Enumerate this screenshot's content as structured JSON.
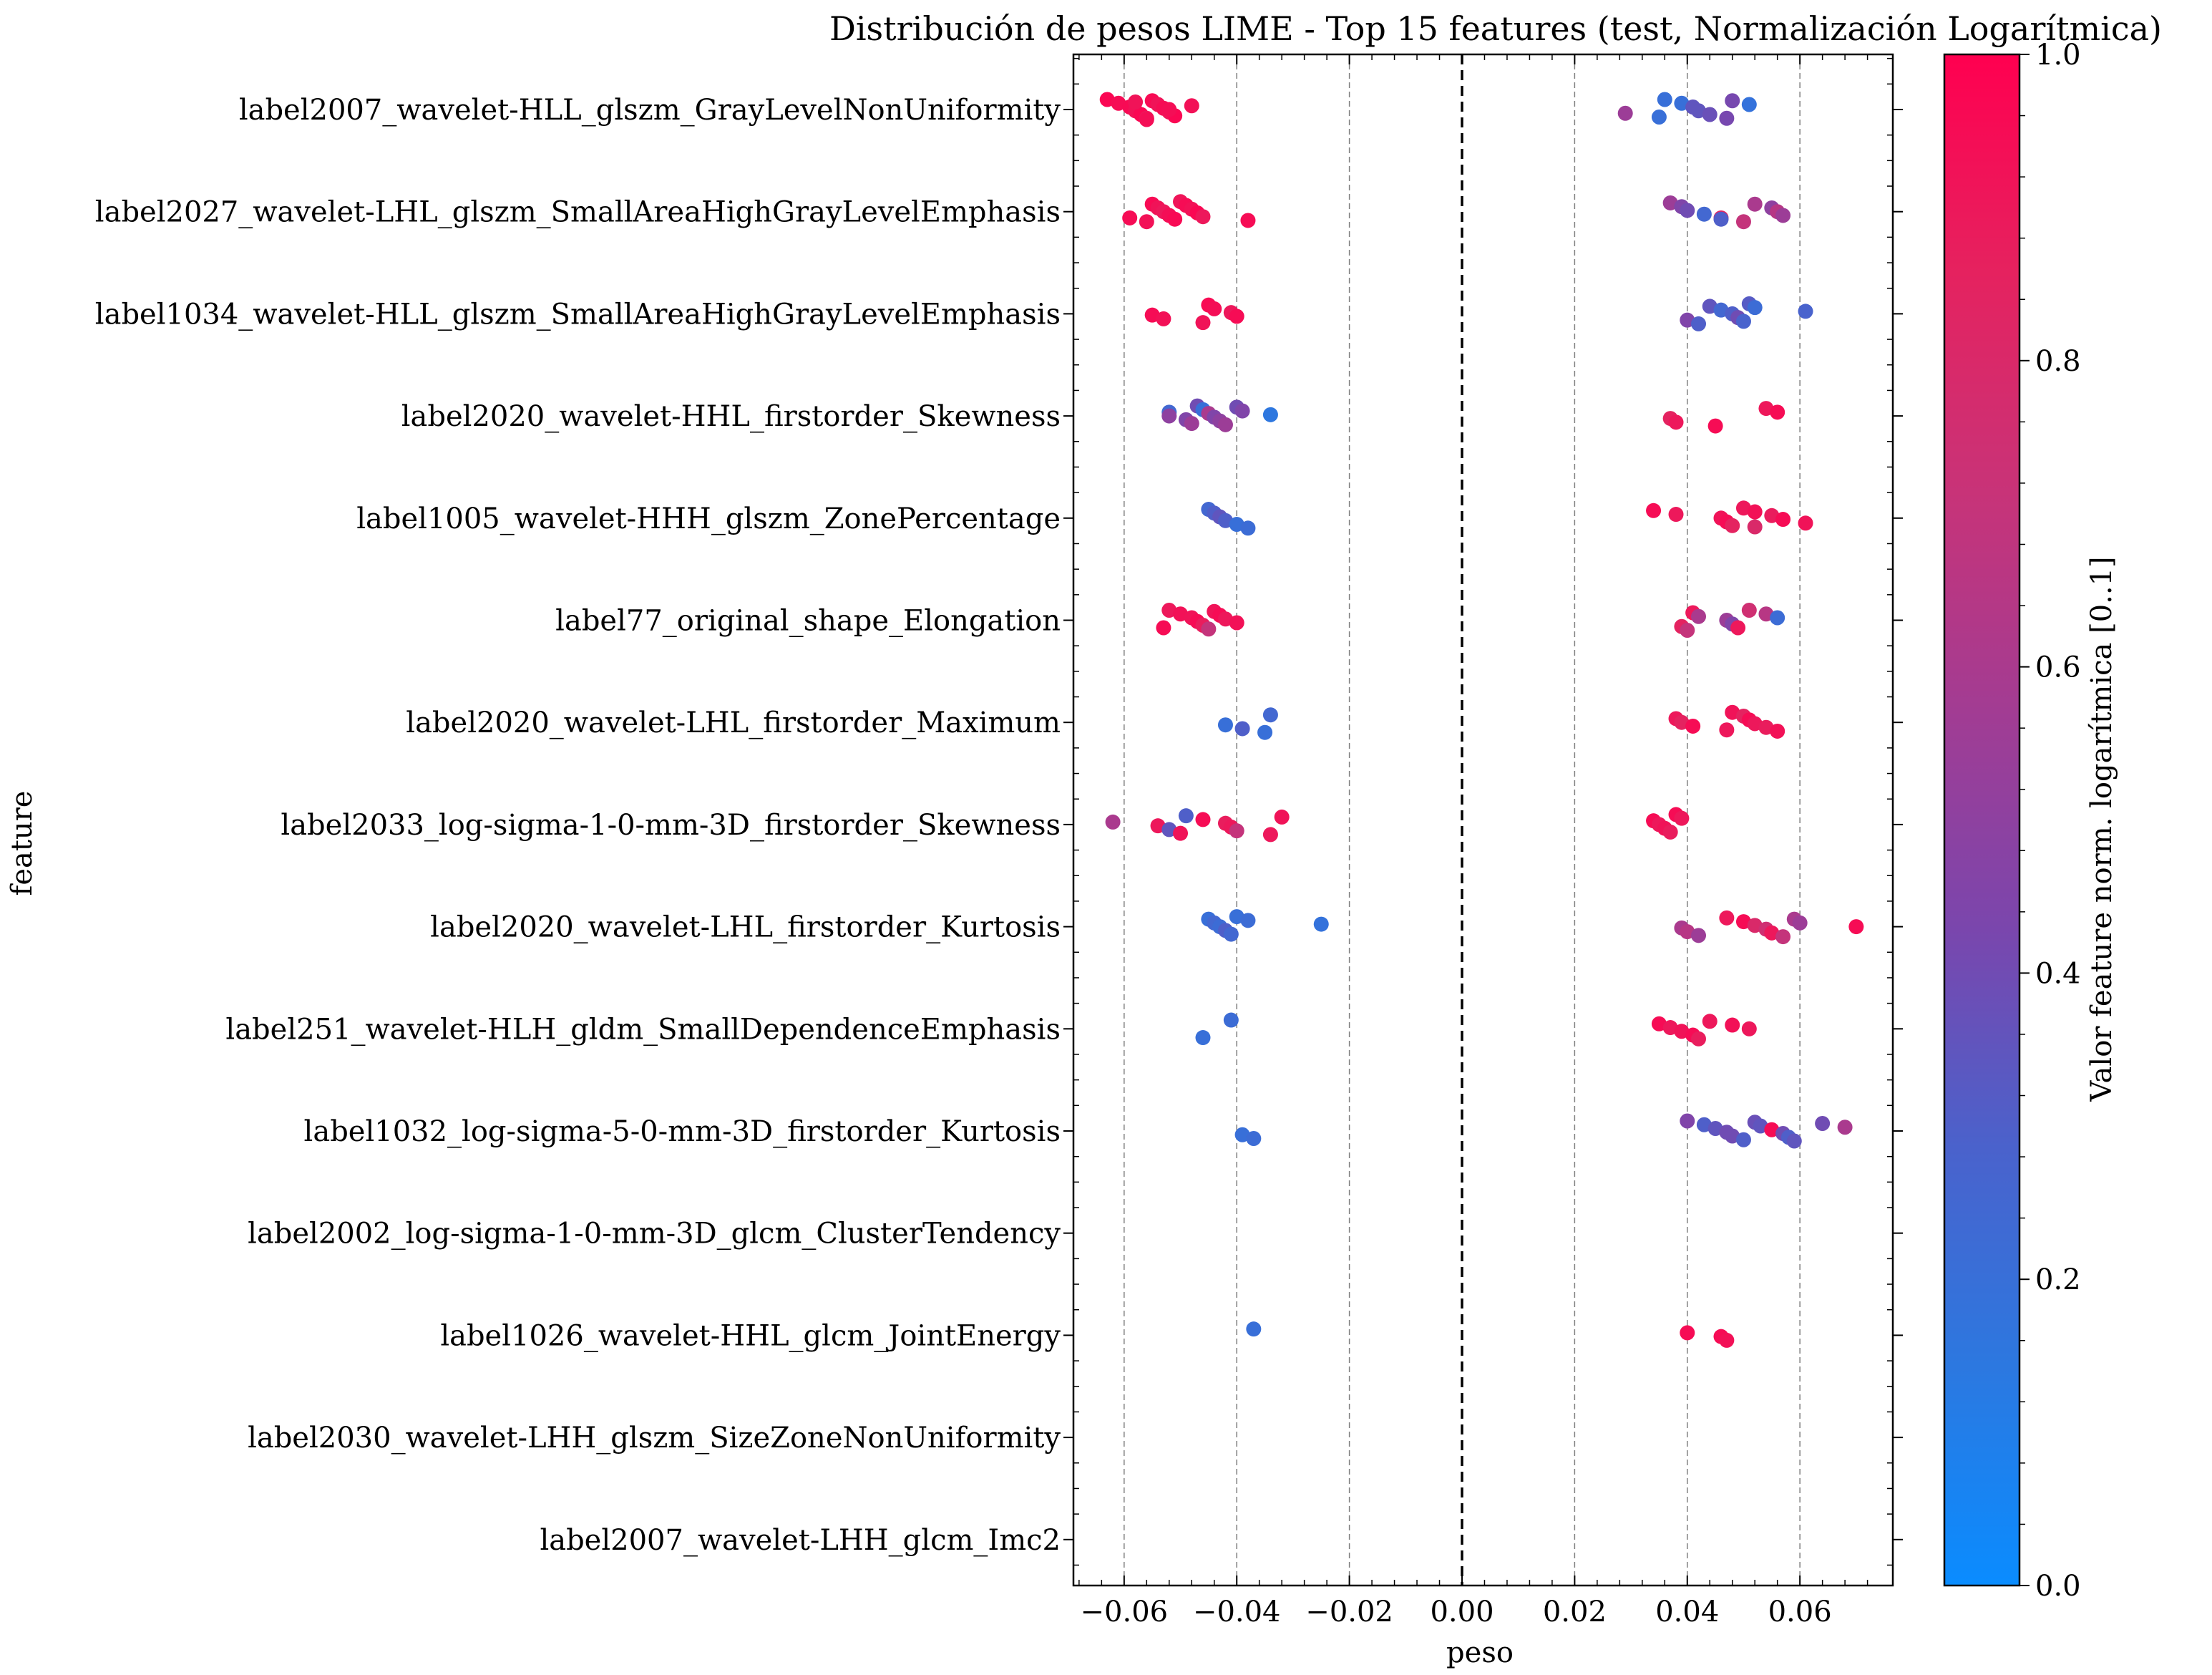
{
  "chart_data": {
    "type": "scatter",
    "title": "Distribución de pesos LIME - Top 15 features (test, Normalización Logarítmica)",
    "xlabel": "peso",
    "ylabel": "feature",
    "xlim": [
      -0.069,
      0.0765
    ],
    "xticks": [
      -0.06,
      -0.04,
      -0.02,
      0.0,
      0.02,
      0.04,
      0.06
    ],
    "xtick_labels": [
      "−0.06",
      "−0.04",
      "−0.02",
      "0.00",
      "0.02",
      "0.04",
      "0.06"
    ],
    "grid": "vertical dashed at x ticks; dashed zero line",
    "colorbar": {
      "label": "Valor feature norm. logarítmica [0..1]",
      "range": [
        0,
        1
      ],
      "ticks": [
        0.0,
        0.2,
        0.4,
        0.6,
        0.8,
        1.0
      ],
      "tick_labels": [
        "0.0",
        "0.2",
        "0.4",
        "0.6",
        "0.8",
        "1.0"
      ],
      "colors": [
        "#0a8cff",
        "#2c78e0",
        "#4a62cc",
        "#7a46ad",
        "#a23c93",
        "#c83378",
        "#e5225f",
        "#ff0050"
      ]
    },
    "features": [
      {
        "label": "label2007_wavelet-HLL_glszm_GrayLevelNonUniformity",
        "points": [
          [
            -0.063,
            0.97
          ],
          [
            -0.061,
            0.95
          ],
          [
            -0.059,
            0.96
          ],
          [
            -0.058,
            0.93
          ],
          [
            -0.057,
            0.97
          ],
          [
            -0.056,
            0.9
          ],
          [
            -0.055,
            0.96
          ],
          [
            -0.054,
            0.92
          ],
          [
            -0.053,
            0.95
          ],
          [
            -0.052,
            0.91
          ],
          [
            -0.051,
            0.97
          ],
          [
            -0.056,
            0.94
          ],
          [
            -0.058,
            0.92
          ],
          [
            -0.048,
            0.93
          ],
          [
            -0.052,
            0.94
          ],
          [
            0.029,
            0.55
          ],
          [
            0.035,
            0.2
          ],
          [
            0.036,
            0.2
          ],
          [
            0.039,
            0.2
          ],
          [
            0.041,
            0.35
          ],
          [
            0.042,
            0.35
          ],
          [
            0.044,
            0.38
          ],
          [
            0.047,
            0.42
          ],
          [
            0.048,
            0.42
          ],
          [
            0.051,
            0.18
          ]
        ]
      },
      {
        "label": "label2027_wavelet-LHL_glszm_SmallAreaHighGrayLevelEmphasis",
        "points": [
          [
            -0.059,
            0.95
          ],
          [
            -0.056,
            0.93
          ],
          [
            -0.055,
            0.96
          ],
          [
            -0.054,
            0.92
          ],
          [
            -0.053,
            0.9
          ],
          [
            -0.052,
            0.94
          ],
          [
            -0.051,
            0.96
          ],
          [
            -0.05,
            0.91
          ],
          [
            -0.049,
            0.95
          ],
          [
            -0.048,
            0.93
          ],
          [
            -0.047,
            0.97
          ],
          [
            -0.046,
            0.9
          ],
          [
            -0.038,
            0.95
          ],
          [
            0.037,
            0.55
          ],
          [
            0.039,
            0.45
          ],
          [
            0.04,
            0.4
          ],
          [
            0.043,
            0.25
          ],
          [
            0.046,
            0.85
          ],
          [
            0.05,
            0.7
          ],
          [
            0.052,
            0.6
          ],
          [
            0.055,
            0.5
          ],
          [
            0.056,
            0.65
          ],
          [
            0.057,
            0.55
          ],
          [
            0.046,
            0.3
          ]
        ]
      },
      {
        "label": "label1034_wavelet-HLL_glszm_SmallAreaHighGrayLevelEmphasis",
        "points": [
          [
            -0.055,
            0.95
          ],
          [
            -0.053,
            0.93
          ],
          [
            -0.046,
            0.92
          ],
          [
            -0.045,
            0.96
          ],
          [
            -0.044,
            0.94
          ],
          [
            -0.041,
            0.9
          ],
          [
            -0.04,
            0.95
          ],
          [
            0.04,
            0.45
          ],
          [
            0.042,
            0.3
          ],
          [
            0.044,
            0.35
          ],
          [
            0.046,
            0.25
          ],
          [
            0.048,
            0.3
          ],
          [
            0.049,
            0.4
          ],
          [
            0.05,
            0.28
          ],
          [
            0.051,
            0.32
          ],
          [
            0.052,
            0.22
          ],
          [
            0.061,
            0.28
          ]
        ]
      },
      {
        "label": "label2020_wavelet-HHL_firstorder_Skewness",
        "points": [
          [
            -0.052,
            0.25
          ],
          [
            -0.052,
            0.5
          ],
          [
            -0.049,
            0.45
          ],
          [
            -0.048,
            0.55
          ],
          [
            -0.047,
            0.4
          ],
          [
            -0.046,
            0.2
          ],
          [
            -0.045,
            0.6
          ],
          [
            -0.044,
            0.45
          ],
          [
            -0.043,
            0.5
          ],
          [
            -0.042,
            0.55
          ],
          [
            -0.04,
            0.4
          ],
          [
            -0.039,
            0.45
          ],
          [
            -0.034,
            0.15
          ],
          [
            0.037,
            0.85
          ],
          [
            0.038,
            0.9
          ],
          [
            0.045,
            0.95
          ],
          [
            0.054,
            0.9
          ],
          [
            0.056,
            0.95
          ]
        ]
      },
      {
        "label": "label1005_wavelet-HHH_glszm_ZonePercentage",
        "points": [
          [
            -0.045,
            0.25
          ],
          [
            -0.044,
            0.3
          ],
          [
            -0.043,
            0.35
          ],
          [
            -0.042,
            0.3
          ],
          [
            -0.04,
            0.2
          ],
          [
            -0.038,
            0.22
          ],
          [
            0.034,
            0.95
          ],
          [
            0.038,
            0.9
          ],
          [
            0.046,
            0.92
          ],
          [
            0.047,
            0.95
          ],
          [
            0.048,
            0.85
          ],
          [
            0.05,
            0.9
          ],
          [
            0.052,
            0.93
          ],
          [
            0.055,
            0.88
          ],
          [
            0.057,
            0.95
          ],
          [
            0.061,
            0.92
          ],
          [
            0.052,
            0.8
          ]
        ]
      },
      {
        "label": "label77_original_shape_Elongation",
        "points": [
          [
            -0.053,
            0.95
          ],
          [
            -0.052,
            0.9
          ],
          [
            -0.05,
            0.93
          ],
          [
            -0.048,
            0.92
          ],
          [
            -0.047,
            0.95
          ],
          [
            -0.046,
            0.88
          ],
          [
            -0.045,
            0.7
          ],
          [
            -0.044,
            0.92
          ],
          [
            -0.043,
            0.95
          ],
          [
            -0.042,
            0.9
          ],
          [
            -0.04,
            0.93
          ],
          [
            0.039,
            0.85
          ],
          [
            0.04,
            0.7
          ],
          [
            0.041,
            0.9
          ],
          [
            0.042,
            0.6
          ],
          [
            0.047,
            0.55
          ],
          [
            0.048,
            0.45
          ],
          [
            0.049,
            0.9
          ],
          [
            0.051,
            0.75
          ],
          [
            0.054,
            0.65
          ],
          [
            0.056,
            0.22
          ]
        ]
      },
      {
        "label": "label2020_wavelet-LHL_firstorder_Maximum",
        "points": [
          [
            -0.042,
            0.2
          ],
          [
            -0.039,
            0.3
          ],
          [
            -0.035,
            0.2
          ],
          [
            -0.034,
            0.25
          ],
          [
            0.038,
            0.9
          ],
          [
            0.039,
            0.85
          ],
          [
            0.041,
            0.95
          ],
          [
            0.047,
            0.9
          ],
          [
            0.048,
            0.92
          ],
          [
            0.05,
            0.85
          ],
          [
            0.051,
            0.95
          ],
          [
            0.052,
            0.9
          ],
          [
            0.054,
            0.88
          ],
          [
            0.056,
            0.93
          ]
        ]
      },
      {
        "label": "label2033_log-sigma-1-0-mm-3D_firstorder_Skewness",
        "points": [
          [
            -0.062,
            0.6
          ],
          [
            -0.054,
            0.9
          ],
          [
            -0.052,
            0.35
          ],
          [
            -0.05,
            0.92
          ],
          [
            -0.049,
            0.3
          ],
          [
            -0.046,
            0.95
          ],
          [
            -0.042,
            0.88
          ],
          [
            -0.041,
            0.9
          ],
          [
            -0.04,
            0.7
          ],
          [
            -0.034,
            0.9
          ],
          [
            -0.032,
            0.92
          ],
          [
            0.034,
            0.95
          ],
          [
            0.035,
            0.9
          ],
          [
            0.036,
            0.92
          ],
          [
            0.037,
            0.88
          ],
          [
            0.038,
            0.95
          ],
          [
            0.039,
            0.9
          ]
        ]
      },
      {
        "label": "label2020_wavelet-LHL_firstorder_Kurtosis",
        "points": [
          [
            -0.045,
            0.2
          ],
          [
            -0.044,
            0.25
          ],
          [
            -0.043,
            0.22
          ],
          [
            -0.042,
            0.3
          ],
          [
            -0.041,
            0.25
          ],
          [
            -0.04,
            0.2
          ],
          [
            -0.038,
            0.22
          ],
          [
            -0.025,
            0.18
          ],
          [
            0.039,
            0.6
          ],
          [
            0.04,
            0.65
          ],
          [
            0.042,
            0.55
          ],
          [
            0.047,
            0.9
          ],
          [
            0.05,
            0.95
          ],
          [
            0.052,
            0.8
          ],
          [
            0.054,
            0.75
          ],
          [
            0.055,
            0.9
          ],
          [
            0.057,
            0.7
          ],
          [
            0.059,
            0.6
          ],
          [
            0.06,
            0.55
          ],
          [
            0.07,
            0.95
          ]
        ]
      },
      {
        "label": "label251_wavelet-HLH_gldm_SmallDependenceEmphasis",
        "points": [
          [
            -0.046,
            0.2
          ],
          [
            -0.041,
            0.22
          ],
          [
            0.035,
            0.95
          ],
          [
            0.037,
            0.9
          ],
          [
            0.039,
            0.92
          ],
          [
            0.041,
            0.95
          ],
          [
            0.042,
            0.88
          ],
          [
            0.044,
            0.9
          ],
          [
            0.048,
            0.93
          ],
          [
            0.051,
            0.9
          ]
        ]
      },
      {
        "label": "label1032_log-sigma-5-0-mm-3D_firstorder_Kurtosis",
        "points": [
          [
            -0.039,
            0.2
          ],
          [
            -0.037,
            0.22
          ],
          [
            0.04,
            0.45
          ],
          [
            0.043,
            0.3
          ],
          [
            0.045,
            0.35
          ],
          [
            0.047,
            0.4
          ],
          [
            0.048,
            0.4
          ],
          [
            0.05,
            0.3
          ],
          [
            0.052,
            0.38
          ],
          [
            0.053,
            0.35
          ],
          [
            0.055,
            0.95
          ],
          [
            0.057,
            0.4
          ],
          [
            0.058,
            0.3
          ],
          [
            0.059,
            0.35
          ],
          [
            0.064,
            0.4
          ],
          [
            0.068,
            0.6
          ]
        ]
      },
      {
        "label": "label2002_log-sigma-1-0-mm-3D_glcm_ClusterTendency",
        "points": []
      },
      {
        "label": "label1026_wavelet-HHL_glcm_JointEnergy",
        "points": [
          [
            -0.037,
            0.2
          ],
          [
            0.04,
            0.95
          ],
          [
            0.046,
            0.95
          ],
          [
            0.047,
            0.93
          ]
        ]
      },
      {
        "label": "label2030_wavelet-LHH_glszm_SizeZoneNonUniformity",
        "points": []
      },
      {
        "label": "label2007_wavelet-LHH_glcm_Imc2",
        "points": []
      }
    ]
  }
}
